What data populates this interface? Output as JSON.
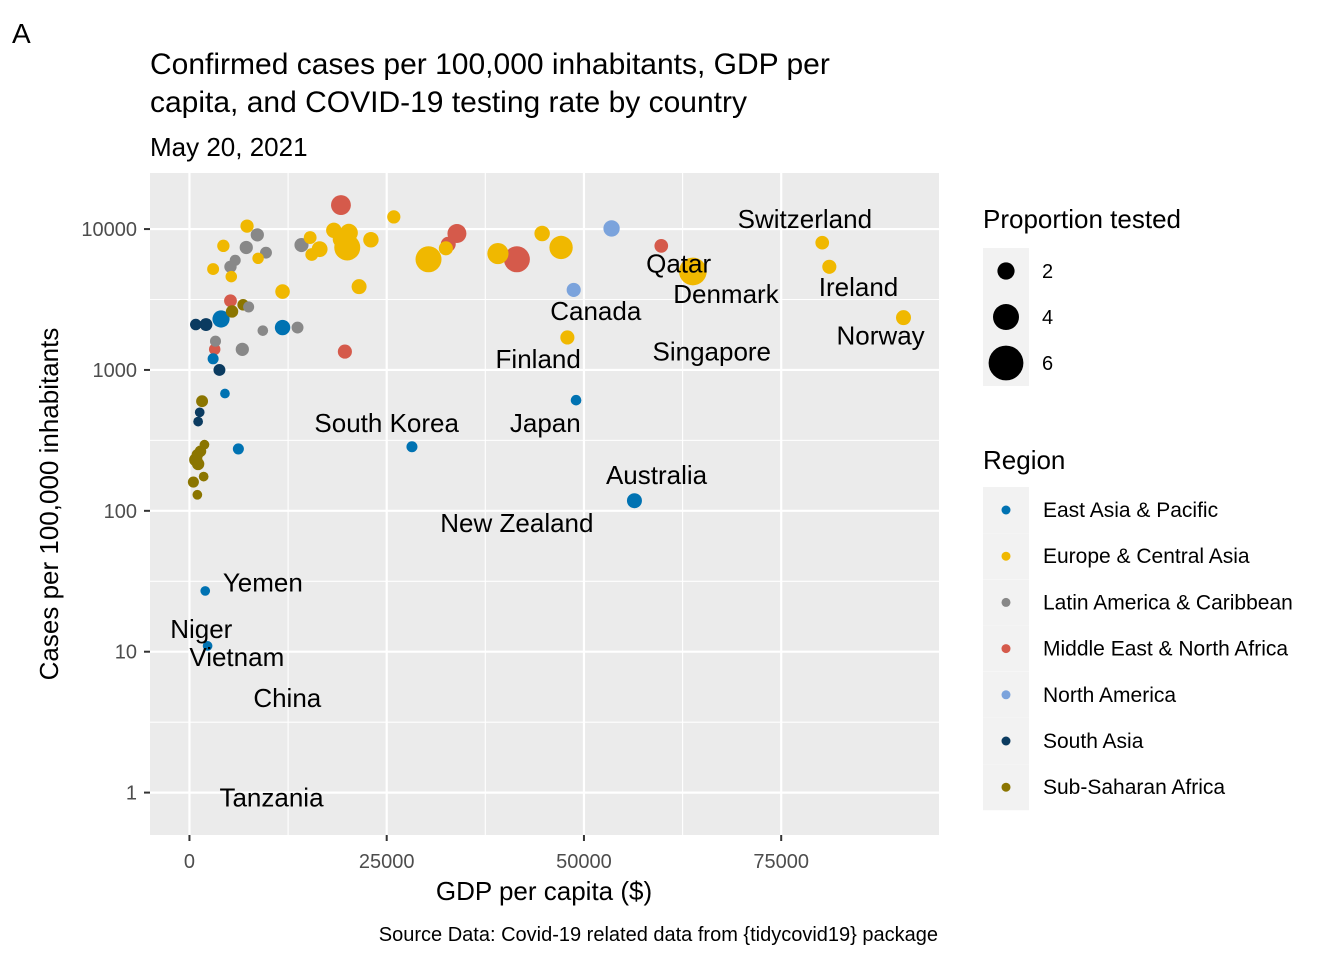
{
  "panel_tag": "A",
  "chart_data": {
    "type": "scatter",
    "title": "Confirmed cases per 100,000 inhabitants, GDP per capita, and COVID-19 testing rate by country",
    "title_lines": [
      "Confirmed cases per 100,000 inhabitants, GDP per",
      "capita, and COVID-19 testing rate by country"
    ],
    "subtitle": "May 20, 2021",
    "caption": "Source Data: Covid-19 related data from {tidycovid19} package",
    "xlabel": "GDP per capita ($)",
    "ylabel": "Cases per 100,000 inhabitants",
    "xlim": [
      -5000,
      95000
    ],
    "ylim": [
      0.5,
      25000
    ],
    "yscale": "log10",
    "grid": true,
    "x_ticks": [
      0,
      25000,
      50000,
      75000
    ],
    "x_tick_labels": [
      "0",
      "25000",
      "50000",
      "75000"
    ],
    "y_ticks": [
      1,
      10,
      100,
      1000,
      10000
    ],
    "y_tick_labels": [
      "1",
      "10",
      "100",
      "1000",
      "10000"
    ],
    "legend_position": "right",
    "size_legend": {
      "title": "Proportion tested",
      "entries": [
        {
          "label": "2",
          "value": 2
        },
        {
          "label": "4",
          "value": 4
        },
        {
          "label": "6",
          "value": 6
        }
      ]
    },
    "color_legend": {
      "title": "Region",
      "entries": [
        {
          "label": "East Asia & Pacific",
          "color": "#0072B2"
        },
        {
          "label": "Europe & Central Asia",
          "color": "#F0B800"
        },
        {
          "label": "Latin America & Caribbean",
          "color": "#888888"
        },
        {
          "label": "Middle East & North Africa",
          "color": "#D55A4B"
        },
        {
          "label": "North America",
          "color": "#7BA3DC"
        },
        {
          "label": "South Asia",
          "color": "#0B3B60"
        },
        {
          "label": "Sub-Saharan Africa",
          "color": "#8B7500"
        }
      ]
    },
    "series": [
      {
        "name": "East Asia & Pacific",
        "color": "#0072B2",
        "points": [
          {
            "x": 4000,
            "y": 2300,
            "s": 2.0
          },
          {
            "x": 11800,
            "y": 2000,
            "s": 1.6
          },
          {
            "x": 3000,
            "y": 1200,
            "s": 0.6
          },
          {
            "x": 4500,
            "y": 680,
            "s": 0.3
          },
          {
            "x": 6200,
            "y": 275,
            "s": 0.6
          },
          {
            "x": 28200,
            "y": 285,
            "s": 0.6
          },
          {
            "x": 49000,
            "y": 610,
            "s": 0.5
          },
          {
            "x": 56400,
            "y": 118,
            "s": 1.5
          },
          {
            "x": 2000,
            "y": 27,
            "s": 0.3
          },
          {
            "x": 2300,
            "y": 11,
            "s": 0.3
          }
        ]
      },
      {
        "name": "Europe & Central Asia",
        "color": "#F0B800",
        "points": [
          {
            "x": 3000,
            "y": 5200,
            "s": 0.8
          },
          {
            "x": 4300,
            "y": 7600,
            "s": 0.9
          },
          {
            "x": 5300,
            "y": 4600,
            "s": 0.7
          },
          {
            "x": 7300,
            "y": 10500,
            "s": 1.1
          },
          {
            "x": 8700,
            "y": 6200,
            "s": 0.7
          },
          {
            "x": 11800,
            "y": 3600,
            "s": 1.4
          },
          {
            "x": 15300,
            "y": 8700,
            "s": 1.0
          },
          {
            "x": 15500,
            "y": 6600,
            "s": 1.0
          },
          {
            "x": 16500,
            "y": 7200,
            "s": 1.7
          },
          {
            "x": 18300,
            "y": 9800,
            "s": 1.6
          },
          {
            "x": 19300,
            "y": 8500,
            "s": 2.2
          },
          {
            "x": 20200,
            "y": 9400,
            "s": 2.2
          },
          {
            "x": 20000,
            "y": 7400,
            "s": 4.0
          },
          {
            "x": 21500,
            "y": 3900,
            "s": 1.5
          },
          {
            "x": 23000,
            "y": 8400,
            "s": 1.6
          },
          {
            "x": 25900,
            "y": 12200,
            "s": 1.1
          },
          {
            "x": 30300,
            "y": 6100,
            "s": 4.0
          },
          {
            "x": 32500,
            "y": 7300,
            "s": 1.3
          },
          {
            "x": 39100,
            "y": 6700,
            "s": 2.9
          },
          {
            "x": 44700,
            "y": 9300,
            "s": 1.6
          },
          {
            "x": 47100,
            "y": 7400,
            "s": 3.4
          },
          {
            "x": 47900,
            "y": 1700,
            "s": 1.3
          },
          {
            "x": 63800,
            "y": 5000,
            "s": 4.4
          },
          {
            "x": 80200,
            "y": 8000,
            "s": 1.2
          },
          {
            "x": 81100,
            "y": 5400,
            "s": 1.3
          },
          {
            "x": 90500,
            "y": 2350,
            "s": 1.5
          }
        ]
      },
      {
        "name": "Latin America & Caribbean",
        "color": "#888888",
        "points": [
          {
            "x": 5200,
            "y": 5400,
            "s": 0.9
          },
          {
            "x": 5800,
            "y": 6000,
            "s": 0.6
          },
          {
            "x": 7200,
            "y": 7400,
            "s": 1.1
          },
          {
            "x": 8600,
            "y": 9100,
            "s": 1.1
          },
          {
            "x": 9700,
            "y": 6800,
            "s": 0.8
          },
          {
            "x": 14200,
            "y": 7700,
            "s": 1.3
          },
          {
            "x": 3300,
            "y": 1600,
            "s": 0.6
          },
          {
            "x": 6700,
            "y": 1400,
            "s": 1.1
          },
          {
            "x": 7500,
            "y": 2800,
            "s": 0.6
          },
          {
            "x": 9300,
            "y": 1900,
            "s": 0.5
          },
          {
            "x": 13700,
            "y": 2000,
            "s": 0.8
          }
        ]
      },
      {
        "name": "Middle East & North Africa",
        "color": "#D55A4B",
        "points": [
          {
            "x": 5200,
            "y": 3100,
            "s": 1.0
          },
          {
            "x": 3200,
            "y": 1400,
            "s": 0.7
          },
          {
            "x": 19200,
            "y": 14800,
            "s": 2.6
          },
          {
            "x": 19700,
            "y": 1350,
            "s": 1.3
          },
          {
            "x": 32800,
            "y": 7800,
            "s": 1.5
          },
          {
            "x": 33900,
            "y": 9300,
            "s": 2.4
          },
          {
            "x": 41500,
            "y": 6100,
            "s": 4.0
          },
          {
            "x": 59800,
            "y": 7600,
            "s": 1.2
          }
        ]
      },
      {
        "name": "North America",
        "color": "#7BA3DC",
        "points": [
          {
            "x": 48700,
            "y": 3700,
            "s": 1.3
          },
          {
            "x": 53500,
            "y": 10100,
            "s": 1.8
          }
        ]
      },
      {
        "name": "South Asia",
        "color": "#0B3B60",
        "points": [
          {
            "x": 800,
            "y": 2100,
            "s": 0.7
          },
          {
            "x": 2100,
            "y": 2100,
            "s": 1.0
          },
          {
            "x": 3800,
            "y": 1000,
            "s": 0.8
          },
          {
            "x": 1300,
            "y": 500,
            "s": 0.3
          },
          {
            "x": 1100,
            "y": 430,
            "s": 0.3
          }
        ]
      },
      {
        "name": "Sub-Saharan Africa",
        "color": "#8B7500",
        "points": [
          {
            "x": 5400,
            "y": 2600,
            "s": 0.9
          },
          {
            "x": 6800,
            "y": 2900,
            "s": 0.7
          },
          {
            "x": 1600,
            "y": 600,
            "s": 0.8
          },
          {
            "x": 1900,
            "y": 295,
            "s": 0.3
          },
          {
            "x": 1400,
            "y": 265,
            "s": 0.7
          },
          {
            "x": 1000,
            "y": 250,
            "s": 0.7
          },
          {
            "x": 800,
            "y": 230,
            "s": 1.1
          },
          {
            "x": 1100,
            "y": 215,
            "s": 0.9
          },
          {
            "x": 1800,
            "y": 175,
            "s": 0.3
          },
          {
            "x": 500,
            "y": 160,
            "s": 0.6
          },
          {
            "x": 1000,
            "y": 130,
            "s": 0.3
          }
        ]
      }
    ],
    "annotations": [
      {
        "text": "Switzerland",
        "x": 78000,
        "y": 11800
      },
      {
        "text": "Qatar",
        "x": 62000,
        "y": 5700
      },
      {
        "text": "Denmark",
        "x": 68000,
        "y": 3450
      },
      {
        "text": "Ireland",
        "x": 84800,
        "y": 3880
      },
      {
        "text": "Canada",
        "x": 51500,
        "y": 2620
      },
      {
        "text": "Norway",
        "x": 87600,
        "y": 1750
      },
      {
        "text": "Finland",
        "x": 44200,
        "y": 1200
      },
      {
        "text": "Singapore",
        "x": 66200,
        "y": 1350
      },
      {
        "text": "South Korea",
        "x": 25000,
        "y": 420
      },
      {
        "text": "Japan",
        "x": 45100,
        "y": 420
      },
      {
        "text": "Australia",
        "x": 59200,
        "y": 180
      },
      {
        "text": "New Zealand",
        "x": 41500,
        "y": 82
      },
      {
        "text": "Yemen",
        "x": 9300,
        "y": 31
      },
      {
        "text": "Niger",
        "x": 1500,
        "y": 14.5
      },
      {
        "text": "Vietnam",
        "x": 6000,
        "y": 9.2
      },
      {
        "text": "China",
        "x": 12400,
        "y": 4.7
      },
      {
        "text": "Tanzania",
        "x": 10400,
        "y": 0.92
      }
    ]
  }
}
